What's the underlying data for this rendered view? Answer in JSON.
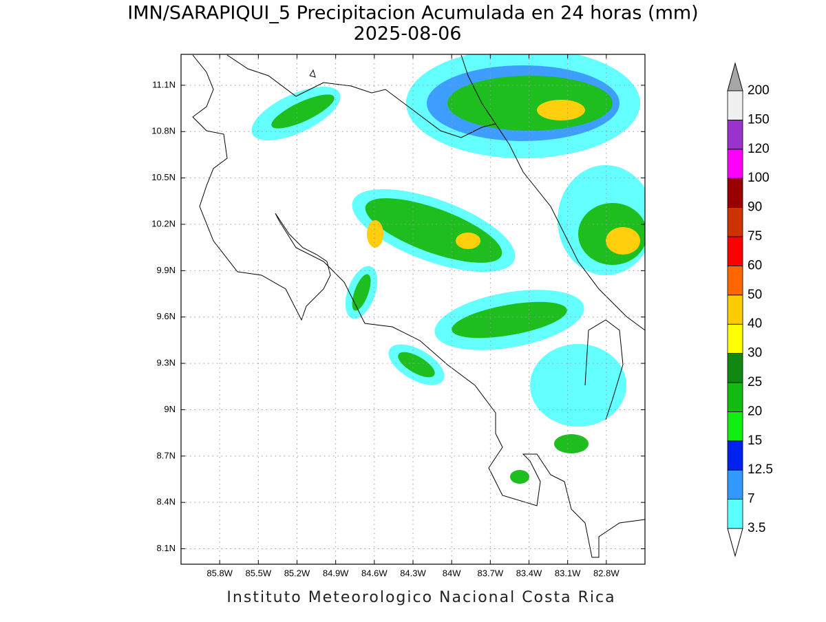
{
  "title": "IMN/SARAPIQUI_5 Precipitacion Acumulada en 24 horas (mm)",
  "subtitle": "2025-08-06",
  "map": {
    "xlim": [
      -86.1,
      -82.5
    ],
    "ylim": [
      8.0,
      11.3
    ],
    "xticks": [
      {
        "value": -85.8,
        "label": "85.8W"
      },
      {
        "value": -85.5,
        "label": "85.5W"
      },
      {
        "value": -85.2,
        "label": "85.2W"
      },
      {
        "value": -84.9,
        "label": "84.9W"
      },
      {
        "value": -84.6,
        "label": "84.6W"
      },
      {
        "value": -84.3,
        "label": "84.3W"
      },
      {
        "value": -84.0,
        "label": "84W"
      },
      {
        "value": -83.7,
        "label": "83.7W"
      },
      {
        "value": -83.4,
        "label": "83.4W"
      },
      {
        "value": -83.1,
        "label": "83.1W"
      },
      {
        "value": -82.8,
        "label": "82.8W"
      }
    ],
    "yticks": [
      {
        "value": 8.1,
        "label": "8.1N"
      },
      {
        "value": 8.4,
        "label": "8.4N"
      },
      {
        "value": 8.7,
        "label": "8.7N"
      },
      {
        "value": 9.0,
        "label": "9N"
      },
      {
        "value": 9.3,
        "label": "9.3N"
      },
      {
        "value": 9.6,
        "label": "9.6N"
      },
      {
        "value": 9.9,
        "label": "9.9N"
      },
      {
        "value": 10.2,
        "label": "10.2N"
      },
      {
        "value": 10.5,
        "label": "10.5N"
      },
      {
        "value": 10.8,
        "label": "10.8N"
      },
      {
        "value": 11.1,
        "label": "11.1N"
      }
    ],
    "grid": true
  },
  "colorbar": {
    "levels": [
      3.5,
      7,
      12.5,
      15,
      20,
      25,
      30,
      40,
      50,
      60,
      75,
      90,
      100,
      120,
      150,
      200
    ],
    "colors": [
      "#5cffff",
      "#3399ff",
      "#0022ee",
      "#11ee11",
      "#11bb11",
      "#118811",
      "#ffff00",
      "#ffcc00",
      "#ff6600",
      "#ff0000",
      "#cc3300",
      "#990000",
      "#ff00ff",
      "#9933cc",
      "#f0f0f0"
    ],
    "under_color": "#ffffff",
    "over_color": "#a6a6a6"
  },
  "footer": "Instituto Meteorologico Nacional Costa Rica"
}
